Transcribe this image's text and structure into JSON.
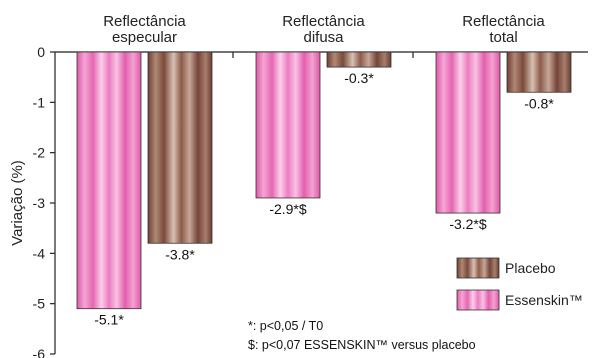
{
  "chart_data": {
    "type": "bar",
    "categories": [
      [
        "Reflectância",
        "especular"
      ],
      [
        "Reflectância",
        "difusa"
      ],
      [
        "Reflectância",
        "total"
      ]
    ],
    "series": [
      {
        "name": "Essenskin™",
        "values": [
          -5.1,
          -2.9,
          -3.2
        ],
        "labels": [
          "-5.1*",
          "-2.9*$",
          "-3.2*$"
        ],
        "color": "#e86cb8"
      },
      {
        "name": "Placebo",
        "values": [
          -3.8,
          -0.3,
          -0.8
        ],
        "labels": [
          "-3.8*",
          "-0.3*",
          "-0.8*"
        ],
        "color": "#8a5a48"
      }
    ],
    "ylabel": "Variação (%)",
    "ylim": [
      -6,
      0
    ],
    "yticks": [
      "0",
      "-1",
      "-2",
      "-3",
      "-4",
      "-5",
      "-6"
    ],
    "legend": {
      "placement": "bottom-right",
      "items": [
        "Placebo",
        "Essenskin™"
      ]
    },
    "notes": [
      "*: p<0,05 / T0",
      "$: p<0,07 ESSENSKIN™ versus placebo"
    ],
    "grid": false
  }
}
